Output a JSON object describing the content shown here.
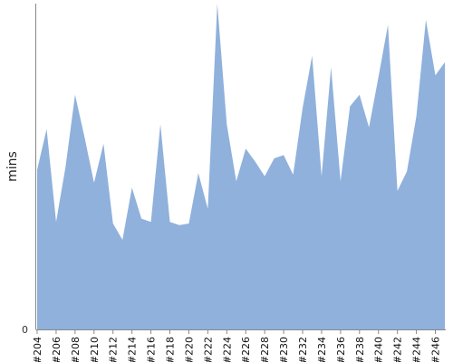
{
  "chart_data": {
    "type": "area",
    "xlabel": "",
    "ylabel": "mins",
    "y_tick_labels": [
      "0"
    ],
    "ylim": [
      0,
      100
    ],
    "x_tick_labels": [
      "#204",
      "#206",
      "#208",
      "#210",
      "#212",
      "#214",
      "#216",
      "#218",
      "#220",
      "#222",
      "#224",
      "#226",
      "#228",
      "#230",
      "#232",
      "#234",
      "#236",
      "#238",
      "#240",
      "#242",
      "#244",
      "#246"
    ],
    "categories": [
      "#204",
      "#205",
      "#206",
      "#207",
      "#208",
      "#209",
      "#210",
      "#211",
      "#212",
      "#213",
      "#214",
      "#215",
      "#216",
      "#217",
      "#218",
      "#219",
      "#220",
      "#221",
      "#222",
      "#223",
      "#224",
      "#225",
      "#226",
      "#227",
      "#228",
      "#229",
      "#230",
      "#231",
      "#232",
      "#233",
      "#234",
      "#235",
      "#236",
      "#237",
      "#238",
      "#239",
      "#240",
      "#241",
      "#242",
      "#243",
      "#244",
      "#245",
      "#246",
      "#247"
    ],
    "series": [
      {
        "color": "#8fb1dc",
        "values": [
          49,
          61.5,
          33,
          50,
          72,
          59,
          45,
          57,
          32.5,
          27.5,
          43.5,
          34,
          33,
          63,
          33,
          32,
          32.5,
          48,
          37,
          100,
          63,
          45.5,
          55.5,
          51.5,
          47,
          52.5,
          53.5,
          47.5,
          68,
          84,
          47,
          80.5,
          45.5,
          68.5,
          72,
          62,
          77.5,
          93.5,
          42.5,
          48.5,
          65.5,
          95,
          78,
          82
        ]
      }
    ],
    "grid": false,
    "legend": "none"
  }
}
